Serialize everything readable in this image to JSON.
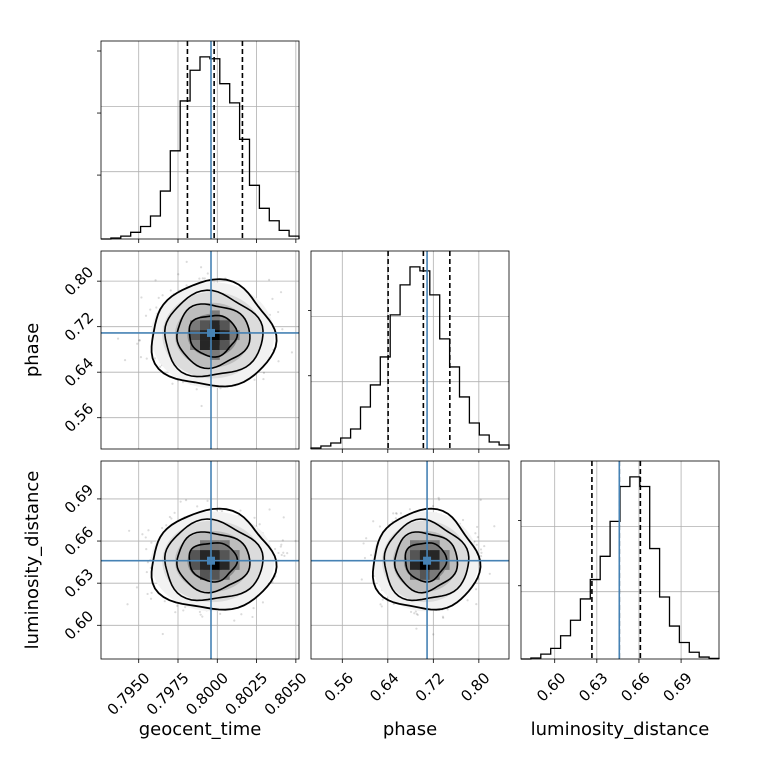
{
  "chart_data": {
    "type": "corner",
    "parameters": [
      "geocent_time",
      "phase",
      "luminosity_distance"
    ],
    "truths": [
      0.7996,
      0.709,
      0.646
    ],
    "colors": {
      "truth": "#4682b4",
      "hist": "#000000",
      "grid": "#b0b0b0",
      "quantile": "#000000"
    },
    "grid": true,
    "axes": {
      "geocent_time": {
        "range": [
          0.7926,
          0.8052
        ],
        "ticks": [
          0.795,
          0.7975,
          0.8,
          0.8025,
          0.805
        ],
        "tick_labels": [
          "0.7950",
          "0.7975",
          "0.8000",
          "0.8025",
          "0.8050"
        ]
      },
      "phase": {
        "range": [
          0.505,
          0.853
        ],
        "ticks": [
          0.56,
          0.64,
          0.72,
          0.8
        ],
        "tick_labels": [
          "0.56",
          "0.64",
          "0.72",
          "0.80"
        ]
      },
      "luminosity_distance": {
        "range": [
          0.576,
          0.717
        ],
        "ticks": [
          0.6,
          0.63,
          0.66,
          0.69
        ],
        "tick_labels": [
          "0.60",
          "0.63",
          "0.66",
          "0.69"
        ]
      }
    },
    "marginals": [
      {
        "parameter": "geocent_time",
        "bins": [
          0.7926,
          0.8052
        ],
        "counts": [
          0,
          0.5,
          1.5,
          3.5,
          6.5,
          12,
          25,
          46,
          72,
          88,
          95,
          94,
          81,
          71,
          52,
          28,
          16,
          9.5,
          4.5,
          1.5
        ],
        "quantiles": [
          0.7981,
          0.7998,
          0.8016
        ]
      },
      {
        "parameter": "phase",
        "bins": [
          0.505,
          0.853
        ],
        "counts": [
          0.5,
          1.5,
          3,
          5.5,
          10,
          21,
          32,
          46,
          67,
          82,
          91,
          89,
          77,
          55,
          41,
          26,
          13,
          7,
          3.5,
          2
        ],
        "quantiles": [
          0.6405,
          0.7025,
          0.749
        ]
      },
      {
        "parameter": "luminosity_distance",
        "bins": [
          0.576,
          0.717
        ],
        "counts": [
          0,
          0.5,
          2.5,
          5.5,
          12,
          20,
          31,
          41,
          53,
          71,
          89,
          94,
          89,
          57,
          32,
          17,
          8.5,
          3.5,
          1,
          0.3
        ],
        "quantiles": [
          0.6265,
          0.646,
          0.661
        ]
      }
    ],
    "joint": [
      {
        "x": "geocent_time",
        "y": "phase",
        "center": [
          0.7997,
          0.705
        ],
        "sd": [
          0.0016,
          0.038
        ]
      },
      {
        "x": "geocent_time",
        "y": "luminosity_distance",
        "center": [
          0.7997,
          0.6455
        ],
        "sd": [
          0.0016,
          0.0145
        ]
      },
      {
        "x": "phase",
        "y": "luminosity_distance",
        "center": [
          0.706,
          0.6455
        ],
        "sd": [
          0.038,
          0.0145
        ]
      }
    ]
  }
}
